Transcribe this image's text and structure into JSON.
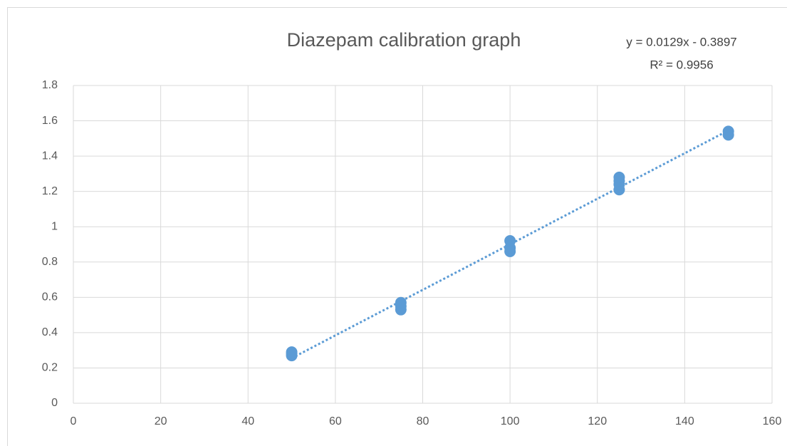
{
  "chart_data": {
    "type": "scatter",
    "title": "Diazepam calibration graph",
    "x": [
      50,
      50,
      50,
      75,
      75,
      75,
      100,
      100,
      100,
      125,
      125,
      125,
      125,
      150,
      150
    ],
    "values": [
      0.27,
      0.28,
      0.29,
      0.53,
      0.55,
      0.57,
      0.86,
      0.88,
      0.92,
      1.21,
      1.24,
      1.26,
      1.28,
      1.52,
      1.54
    ],
    "color": "#5b9bd5",
    "trendline": {
      "slope": 0.0129,
      "intercept": -0.3897,
      "label": "y = 0.0129x - 0.3897",
      "r2": 0.9956,
      "r2_label": "R² = 0.9956"
    },
    "xlim": [
      0,
      160
    ],
    "xticks": [
      0,
      20,
      40,
      60,
      80,
      100,
      120,
      140,
      160
    ],
    "ylim": [
      0,
      1.8
    ],
    "yticks": [
      0,
      0.2,
      0.4,
      0.6,
      0.8,
      1,
      1.2,
      1.4,
      1.6,
      1.8
    ],
    "grid": true
  }
}
